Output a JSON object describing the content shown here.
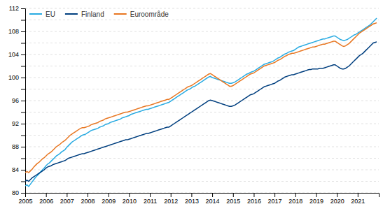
{
  "chart_data": {
    "type": "line",
    "x": [
      2005,
      2005.0833333333333,
      2005.1666666666667,
      2005.25,
      2005.3333333333333,
      2005.4166666666667,
      2005.5,
      2005.5833333333333,
      2005.6666666666667,
      2005.75,
      2005.8333333333333,
      2005.9166666666667,
      2006,
      2006.0833333333333,
      2006.1666666666667,
      2006.25,
      2006.3333333333333,
      2006.4166666666667,
      2006.5,
      2006.5833333333333,
      2006.6666666666667,
      2006.75,
      2006.8333333333333,
      2006.9166666666667,
      2007,
      2007.0833333333333,
      2007.1666666666667,
      2007.25,
      2007.3333333333333,
      2007.4166666666667,
      2007.5,
      2007.5833333333333,
      2007.6666666666667,
      2007.75,
      2007.8333333333333,
      2007.9166666666667,
      2008,
      2008.0833333333333,
      2008.1666666666667,
      2008.25,
      2008.3333333333333,
      2008.4166666666667,
      2008.5,
      2008.5833333333333,
      2008.6666666666667,
      2008.75,
      2008.8333333333333,
      2008.9166666666667,
      2009,
      2009.0833333333333,
      2009.1666666666667,
      2009.25,
      2009.3333333333333,
      2009.4166666666667,
      2009.5,
      2009.5833333333333,
      2009.6666666666667,
      2009.75,
      2009.8333333333333,
      2009.9166666666667,
      2010,
      2010.0833333333333,
      2010.1666666666667,
      2010.25,
      2010.3333333333333,
      2010.4166666666667,
      2010.5,
      2010.5833333333333,
      2010.6666666666667,
      2010.75,
      2010.8333333333333,
      2010.9166666666667,
      2011,
      2011.0833333333333,
      2011.1666666666667,
      2011.25,
      2011.3333333333333,
      2011.4166666666667,
      2011.5,
      2011.5833333333333,
      2011.6666666666667,
      2011.75,
      2011.8333333333333,
      2011.9166666666667,
      2012,
      2012.0833333333333,
      2012.1666666666667,
      2012.25,
      2012.3333333333333,
      2012.4166666666667,
      2012.5,
      2012.5833333333333,
      2012.6666666666667,
      2012.75,
      2012.8333333333333,
      2012.9166666666667,
      2013,
      2013.0833333333333,
      2013.1666666666667,
      2013.25,
      2013.3333333333333,
      2013.4166666666667,
      2013.5,
      2013.5833333333333,
      2013.6666666666667,
      2013.75,
      2013.8333333333333,
      2013.9166666666667,
      2014,
      2014.0833333333333,
      2014.1666666666667,
      2014.25,
      2014.3333333333333,
      2014.4166666666667,
      2014.5,
      2014.5833333333333,
      2014.6666666666667,
      2014.75,
      2014.8333333333333,
      2014.9166666666667,
      2015,
      2015.0833333333333,
      2015.1666666666667,
      2015.25,
      2015.3333333333333,
      2015.4166666666667,
      2015.5,
      2015.5833333333333,
      2015.6666666666667,
      2015.75,
      2015.8333333333333,
      2015.9166666666667,
      2016,
      2016.0833333333333,
      2016.1666666666667,
      2016.25,
      2016.3333333333333,
      2016.4166666666667,
      2016.5,
      2016.5833333333333,
      2016.6666666666667,
      2016.75,
      2016.8333333333333,
      2016.9166666666667,
      2017,
      2017.0833333333333,
      2017.1666666666667,
      2017.25,
      2017.3333333333333,
      2017.4166666666667,
      2017.5,
      2017.5833333333333,
      2017.6666666666667,
      2017.75,
      2017.8333333333333,
      2017.9166666666667,
      2018,
      2018.0833333333333,
      2018.1666666666667,
      2018.25,
      2018.3333333333333,
      2018.4166666666667,
      2018.5,
      2018.5833333333333,
      2018.6666666666667,
      2018.75,
      2018.8333333333333,
      2018.9166666666667,
      2019,
      2019.0833333333333,
      2019.1666666666667,
      2019.25,
      2019.3333333333333,
      2019.4166666666667,
      2019.5,
      2019.5833333333333,
      2019.6666666666667,
      2019.75,
      2019.8333333333333,
      2019.9166666666667,
      2020,
      2020.0833333333333,
      2020.1666666666667,
      2020.25,
      2020.3333333333333,
      2020.4166666666667,
      2020.5,
      2020.5833333333333,
      2020.6666666666667,
      2020.75,
      2020.8333333333333,
      2020.9166666666667,
      2021,
      2021.0833333333333,
      2021.1666666666667,
      2021.25,
      2021.3333333333333,
      2021.4166666666667,
      2021.5,
      2021.5833333333333,
      2021.6666666666667,
      2021.75,
      2021.8333333333333,
      2021.9166666666667
    ],
    "xlim": [
      2005,
      2022.0166666666667
    ],
    "xticks": [
      2005,
      2006,
      2007,
      2008,
      2009,
      2010,
      2011,
      2012,
      2013,
      2014,
      2015,
      2016,
      2017,
      2018,
      2019,
      2020,
      2021
    ],
    "ylim": [
      80,
      112
    ],
    "yticks": [
      80,
      {
        "value": 82,
        "label": null
      },
      84,
      {
        "value": 86,
        "label": null
      },
      88,
      {
        "value": 90,
        "label": null
      },
      92,
      {
        "value": 94,
        "label": null
      },
      96,
      {
        "value": 98,
        "label": null
      },
      100,
      {
        "value": 102,
        "label": null
      },
      104,
      {
        "value": 106,
        "label": null
      },
      108,
      {
        "value": 110,
        "label": null
      },
      112
    ],
    "grid": "y",
    "legend": "upper left",
    "series": [
      {
        "name": "EU",
        "color": "#29ABE2",
        "values": [
          81.2,
          81.4,
          81.1,
          81.5,
          81.9,
          82.3,
          82.7,
          83.0,
          83.3,
          83.7,
          84.0,
          84.3,
          84.7,
          85.0,
          85.2,
          85.5,
          85.8,
          86.1,
          86.4,
          86.6,
          86.8,
          87.1,
          87.3,
          87.5,
          87.9,
          88.2,
          88.5,
          88.8,
          89.0,
          89.2,
          89.4,
          89.6,
          89.8,
          90.0,
          90.1,
          90.2,
          90.4,
          90.6,
          90.8,
          90.9,
          91.0,
          91.1,
          91.2,
          91.4,
          91.5,
          91.6,
          91.8,
          91.9,
          92.0,
          92.2,
          92.3,
          92.4,
          92.5,
          92.6,
          92.7,
          92.8,
          93.0,
          93.1,
          93.2,
          93.3,
          93.4,
          93.6,
          93.7,
          93.8,
          93.9,
          94.0,
          94.1,
          94.2,
          94.3,
          94.4,
          94.5,
          94.5,
          94.6,
          94.7,
          94.8,
          94.9,
          95.0,
          95.1,
          95.2,
          95.3,
          95.4,
          95.5,
          95.6,
          95.7,
          95.9,
          96.1,
          96.3,
          96.5,
          96.7,
          96.9,
          97.1,
          97.3,
          97.5,
          97.7,
          97.9,
          98.0,
          98.2,
          98.4,
          98.5,
          98.7,
          98.9,
          99.1,
          99.3,
          99.5,
          99.7,
          99.9,
          100.1,
          100.2,
          100.0,
          99.9,
          99.8,
          99.7,
          99.6,
          99.5,
          99.4,
          99.3,
          99.2,
          99.1,
          99.0,
          99.0,
          99.1,
          99.2,
          99.4,
          99.6,
          99.8,
          100.0,
          100.2,
          100.4,
          100.6,
          100.7,
          100.9,
          101.0,
          101.1,
          101.3,
          101.5,
          101.7,
          101.9,
          102.1,
          102.3,
          102.4,
          102.5,
          102.6,
          102.7,
          102.8,
          103.0,
          103.2,
          103.4,
          103.5,
          103.7,
          103.9,
          104.1,
          104.2,
          104.4,
          104.5,
          104.6,
          104.7,
          104.9,
          105.1,
          105.3,
          105.4,
          105.5,
          105.6,
          105.7,
          105.8,
          105.9,
          106.0,
          106.1,
          106.2,
          106.3,
          106.4,
          106.5,
          106.6,
          106.7,
          106.7,
          106.8,
          106.9,
          107.0,
          107.1,
          107.2,
          107.2,
          107.0,
          106.8,
          106.6,
          106.5,
          106.4,
          106.5,
          106.6,
          106.8,
          107.0,
          107.2,
          107.4,
          107.5,
          107.7,
          107.9,
          108.1,
          108.3,
          108.5,
          108.7,
          108.9,
          109.1,
          109.4,
          109.7,
          110.0,
          110.3
        ]
      },
      {
        "name": "Finland",
        "color": "#003F7F",
        "values": [
          82.0,
          82.2,
          82.0,
          82.3,
          82.6,
          82.8,
          83.0,
          83.2,
          83.4,
          83.6,
          83.8,
          84.0,
          84.3,
          84.5,
          84.6,
          84.7,
          84.9,
          85.0,
          85.1,
          85.2,
          85.3,
          85.4,
          85.5,
          85.6,
          85.8,
          86.0,
          86.1,
          86.2,
          86.3,
          86.4,
          86.5,
          86.6,
          86.7,
          86.8,
          86.8,
          86.9,
          87.0,
          87.1,
          87.2,
          87.3,
          87.4,
          87.5,
          87.6,
          87.7,
          87.8,
          87.9,
          88.0,
          88.1,
          88.2,
          88.3,
          88.4,
          88.5,
          88.6,
          88.7,
          88.8,
          88.9,
          89.0,
          89.1,
          89.2,
          89.2,
          89.3,
          89.4,
          89.5,
          89.6,
          89.7,
          89.8,
          89.9,
          90.0,
          90.1,
          90.2,
          90.3,
          90.3,
          90.4,
          90.5,
          90.6,
          90.7,
          90.8,
          90.9,
          91.0,
          91.1,
          91.2,
          91.3,
          91.4,
          91.4,
          91.6,
          91.8,
          92.0,
          92.2,
          92.4,
          92.6,
          92.8,
          93.0,
          93.2,
          93.4,
          93.6,
          93.8,
          94.0,
          94.2,
          94.4,
          94.6,
          94.8,
          95.0,
          95.2,
          95.4,
          95.6,
          95.8,
          96.0,
          96.1,
          96.0,
          95.9,
          95.8,
          95.7,
          95.6,
          95.5,
          95.4,
          95.3,
          95.2,
          95.1,
          95.0,
          95.0,
          95.1,
          95.2,
          95.4,
          95.6,
          95.8,
          96.0,
          96.2,
          96.4,
          96.6,
          96.8,
          97.0,
          97.1,
          97.2,
          97.4,
          97.6,
          97.8,
          98.0,
          98.2,
          98.4,
          98.5,
          98.6,
          98.7,
          98.8,
          98.9,
          99.0,
          99.2,
          99.4,
          99.5,
          99.7,
          99.9,
          100.1,
          100.2,
          100.3,
          100.4,
          100.5,
          100.5,
          100.6,
          100.7,
          100.8,
          100.9,
          101.0,
          101.1,
          101.2,
          101.3,
          101.4,
          101.4,
          101.5,
          101.5,
          101.5,
          101.5,
          101.6,
          101.6,
          101.6,
          101.7,
          101.8,
          101.9,
          102.0,
          102.1,
          102.2,
          102.2,
          102.0,
          101.8,
          101.6,
          101.5,
          101.5,
          101.6,
          101.8,
          102.0,
          102.3,
          102.6,
          102.9,
          103.2,
          103.5,
          103.8,
          104.0,
          104.2,
          104.5,
          104.8,
          105.1,
          105.4,
          105.7,
          106.0,
          106.1,
          106.2
        ]
      },
      {
        "name": "Euroområde",
        "color": "#E87722",
        "values": [
          83.5,
          83.7,
          83.5,
          83.8,
          84.1,
          84.5,
          84.8,
          85.1,
          85.3,
          85.6,
          85.9,
          86.1,
          86.4,
          86.7,
          86.9,
          87.1,
          87.4,
          87.7,
          88.0,
          88.2,
          88.4,
          88.7,
          88.9,
          89.1,
          89.4,
          89.7,
          90.0,
          90.2,
          90.4,
          90.6,
          90.8,
          91.0,
          91.2,
          91.3,
          91.3,
          91.4,
          91.5,
          91.6,
          91.8,
          91.9,
          92.0,
          92.1,
          92.2,
          92.4,
          92.5,
          92.6,
          92.8,
          92.9,
          93.0,
          93.1,
          93.2,
          93.3,
          93.4,
          93.5,
          93.6,
          93.7,
          93.8,
          93.9,
          94.0,
          94.0,
          94.1,
          94.2,
          94.3,
          94.4,
          94.5,
          94.6,
          94.7,
          94.8,
          94.9,
          95.0,
          95.1,
          95.1,
          95.2,
          95.3,
          95.4,
          95.5,
          95.6,
          95.7,
          95.8,
          95.9,
          96.0,
          96.1,
          96.2,
          96.2,
          96.4,
          96.6,
          96.8,
          97.0,
          97.2,
          97.4,
          97.6,
          97.8,
          98.0,
          98.2,
          98.4,
          98.5,
          98.6,
          98.8,
          99.0,
          99.2,
          99.4,
          99.6,
          99.8,
          100.0,
          100.2,
          100.4,
          100.6,
          100.7,
          100.5,
          100.3,
          100.1,
          99.9,
          99.7,
          99.5,
          99.3,
          99.1,
          98.9,
          98.7,
          98.5,
          98.5,
          98.6,
          98.8,
          99.0,
          99.2,
          99.4,
          99.6,
          99.8,
          100.0,
          100.2,
          100.4,
          100.6,
          100.7,
          100.8,
          101.0,
          101.2,
          101.4,
          101.6,
          101.8,
          102.0,
          102.1,
          102.2,
          102.3,
          102.4,
          102.5,
          102.6,
          102.8,
          103.0,
          103.1,
          103.3,
          103.5,
          103.7,
          103.8,
          104.0,
          104.1,
          104.2,
          104.2,
          104.3,
          104.4,
          104.5,
          104.6,
          104.7,
          104.8,
          104.9,
          105.0,
          105.1,
          105.2,
          105.3,
          105.3,
          105.4,
          105.5,
          105.6,
          105.7,
          105.8,
          105.8,
          105.9,
          106.0,
          106.1,
          106.2,
          106.3,
          106.3,
          106.1,
          105.9,
          105.7,
          105.5,
          105.4,
          105.5,
          105.7,
          105.9,
          106.2,
          106.5,
          106.8,
          107.1,
          107.4,
          107.7,
          107.9,
          108.1,
          108.3,
          108.5,
          108.7,
          108.9,
          109.1,
          109.3,
          109.4,
          109.5
        ]
      }
    ]
  }
}
